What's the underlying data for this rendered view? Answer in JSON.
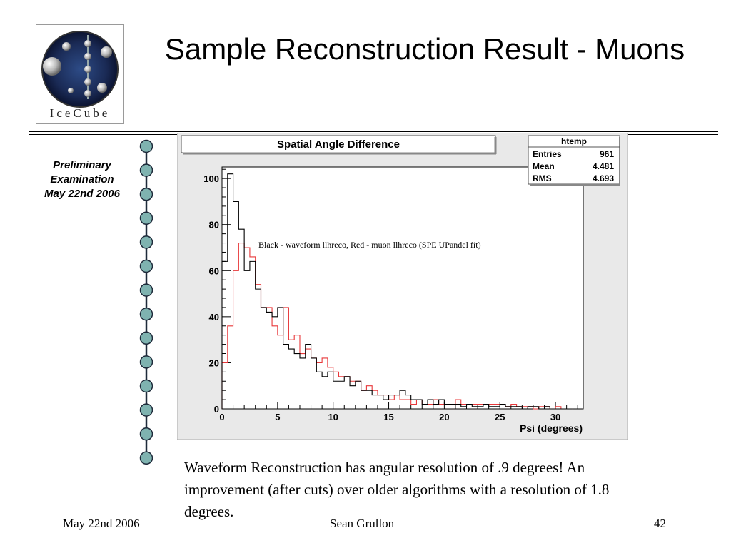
{
  "slide": {
    "title": "Sample Reconstruction Result - Muons",
    "logo_text": "IceCube",
    "side_note": [
      "Preliminary",
      "Examination",
      "May 22nd 2006"
    ],
    "caption": "Waveform Reconstruction has angular resolution of .9 degrees!  An improvement (after cuts) over older algorithms with a resolution of 1.8 degrees.",
    "footer_left": "May 22nd 2006",
    "footer_center": "Sean Grullon",
    "footer_right": "42"
  },
  "chart_data": {
    "type": "histogram",
    "title": "Spatial Angle Difference",
    "xlabel": "Psi (degrees)",
    "ylabel": "",
    "xlim": [
      0,
      32.5
    ],
    "ylim": [
      0,
      105
    ],
    "x_ticks": [
      0,
      5,
      10,
      15,
      20,
      25,
      30
    ],
    "y_ticks": [
      0,
      20,
      40,
      60,
      80,
      100
    ],
    "bin_width": 0.5,
    "annotation": "Black - waveform llhreco, Red - muon llhreco (SPE UPandel fit)",
    "stats_box": {
      "name": "htemp",
      "rows": [
        {
          "label": "Entries",
          "value": "961"
        },
        {
          "label": "Mean",
          "value": "4.481"
        },
        {
          "label": "RMS",
          "value": "4.693"
        }
      ]
    },
    "series": [
      {
        "color": "#000000",
        "values": [
          64,
          102,
          90,
          78,
          60,
          64,
          52,
          44,
          42,
          40,
          44,
          28,
          26,
          24,
          22,
          28,
          22,
          16,
          14,
          16,
          12,
          12,
          14,
          10,
          12,
          8,
          8,
          6,
          6,
          4,
          6,
          6,
          8,
          6,
          4,
          4,
          2,
          4,
          2,
          4,
          2,
          2,
          2,
          1,
          2,
          1,
          1,
          2,
          1,
          1,
          2,
          1,
          1,
          1,
          0,
          1,
          1,
          0,
          1,
          0,
          0,
          0,
          0
        ]
      },
      {
        "color": "#e8383a",
        "values": [
          20,
          36,
          60,
          72,
          70,
          66,
          54,
          44,
          44,
          36,
          32,
          44,
          30,
          32,
          24,
          26,
          22,
          20,
          22,
          18,
          16,
          14,
          14,
          12,
          12,
          8,
          10,
          8,
          6,
          6,
          4,
          6,
          4,
          4,
          2,
          4,
          2,
          2,
          4,
          2,
          2,
          2,
          4,
          2,
          2,
          2,
          2,
          2,
          2,
          2,
          2,
          1,
          2,
          1,
          1,
          1,
          0,
          1,
          1,
          0,
          1,
          0,
          0
        ]
      }
    ]
  }
}
